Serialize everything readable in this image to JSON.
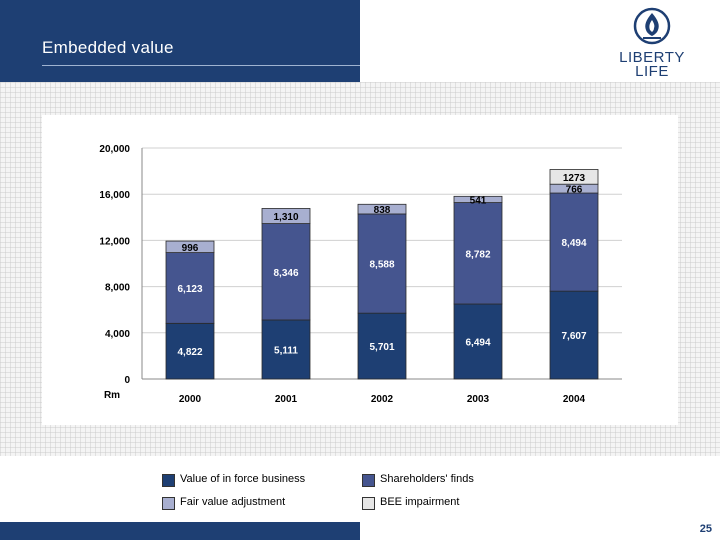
{
  "slide": {
    "title": "Embedded value",
    "page_number": "25",
    "logo": {
      "line1": "LIBERTY",
      "line2": "LIFE",
      "icon": "flame-shield-icon"
    }
  },
  "colors": {
    "header": "#1e3f73",
    "value_in_force": "#1e3f73",
    "shareholders_funds": "#45558f",
    "fair_value_adjustment": "#a8afd0",
    "bee_impairment": "#e6e6e6"
  },
  "chart_data": {
    "type": "bar",
    "stacked": true,
    "categories": [
      "2000",
      "2001",
      "2002",
      "2003",
      "2004"
    ],
    "ylim": [
      0,
      20000
    ],
    "yticks": [
      {
        "value": 0,
        "label": "0"
      },
      {
        "value": 4000,
        "label": "4,000"
      },
      {
        "value": 8000,
        "label": "8,000"
      },
      {
        "value": 12000,
        "label": "12,000"
      },
      {
        "value": 16000,
        "label": "16,000"
      },
      {
        "value": 20000,
        "label": "20,000"
      }
    ],
    "ylabel": "Rm",
    "grid": true,
    "legend_position": "bottom",
    "series": [
      {
        "name": "Value of in force business",
        "color": "#1e3f73",
        "values": [
          4822,
          5111,
          5701,
          6494,
          7607
        ],
        "labels": [
          "4,822",
          "5,111",
          "5,701",
          "6,494",
          "7,607"
        ]
      },
      {
        "name": "Shareholders' finds",
        "color": "#45558f",
        "values": [
          6123,
          8346,
          8588,
          8782,
          8494
        ],
        "labels": [
          "6,123",
          "8,346",
          "8,588",
          "8,782",
          "8,494"
        ]
      },
      {
        "name": "Fair value adjustment",
        "color": "#a8afd0",
        "values": [
          996,
          1310,
          838,
          541,
          766
        ],
        "labels": [
          "996",
          "1,310",
          "838",
          "541",
          "766"
        ]
      },
      {
        "name": "BEE impairment",
        "color": "#e6e6e6",
        "values": [
          0,
          0,
          0,
          0,
          1273
        ],
        "labels": [
          "",
          "",
          "",
          "",
          "1273"
        ]
      }
    ]
  },
  "legend": [
    {
      "label": "Value of in force business",
      "color": "#1e3f73"
    },
    {
      "label": "Shareholders' finds",
      "color": "#45558f"
    },
    {
      "label": "Fair value adjustment",
      "color": "#a8afd0"
    },
    {
      "label": "BEE impairment",
      "color": "#e6e6e6"
    }
  ]
}
